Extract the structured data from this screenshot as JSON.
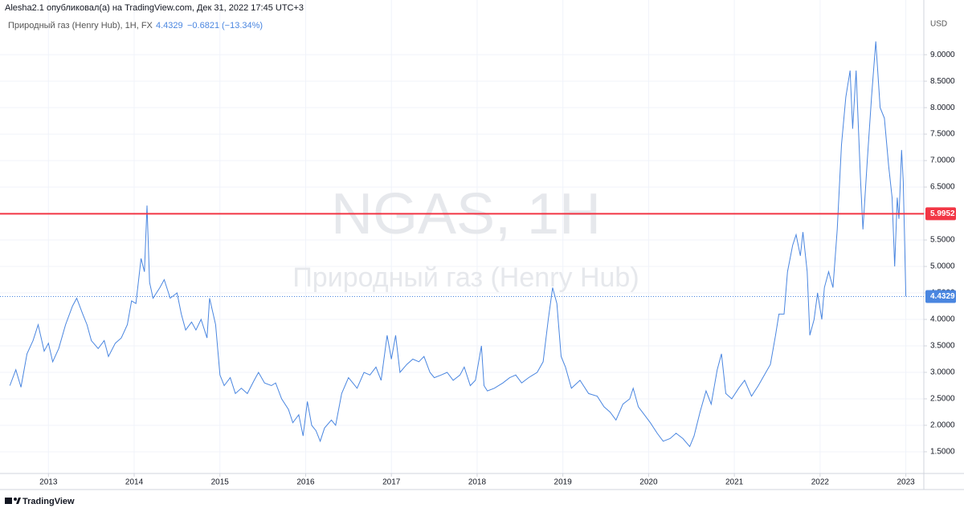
{
  "header": "Alesha2.1 опубликовал(а) на TradingView.com, Дек 31, 2022 17:45 UTC+3",
  "footer": "TradingView",
  "chart_data": {
    "type": "line",
    "symbol": "Природный газ (Henry Hub), 1Н, FX",
    "last_price": 4.4329,
    "change": "−0.6821",
    "change_pct": "(−13.34%)",
    "watermark": [
      "NGAS, 1Н",
      "Природный газ (Henry Hub)"
    ],
    "currency": "USD",
    "color": "#4a86e0",
    "hline": {
      "value": 5.9952,
      "color": "#f23645"
    },
    "grid": true,
    "xlim": [
      2012.51,
      2023.21
    ],
    "xticks": [
      2013,
      2014,
      2015,
      2016,
      2017,
      2018,
      2019,
      2020,
      2021,
      2022,
      2023
    ],
    "ylim": [
      1.09,
      9.76
    ],
    "yticks": [
      {
        "value": 1.5,
        "label": "1.5000"
      },
      {
        "value": 2,
        "label": "2.0000"
      },
      {
        "value": 2.5,
        "label": "2.5000"
      },
      {
        "value": 3,
        "label": "3.0000"
      },
      {
        "value": 3.5,
        "label": "3.5000"
      },
      {
        "value": 4,
        "label": "4.0000"
      },
      {
        "value": 4.5,
        "label": "4.5000"
      },
      {
        "value": 5,
        "label": "5.0000"
      },
      {
        "value": 5.5,
        "label": "5.5000"
      },
      {
        "value": 6,
        "label": "6.0000"
      },
      {
        "value": 6.5,
        "label": "6.5000"
      },
      {
        "value": 7,
        "label": "7.0000"
      },
      {
        "value": 7.5,
        "label": "7.5000"
      },
      {
        "value": 8,
        "label": "8.0000"
      },
      {
        "value": 8.5,
        "label": "8.5000"
      },
      {
        "value": 9,
        "label": "9.0000"
      }
    ],
    "x": [
      2012.55,
      2012.62,
      2012.68,
      2012.75,
      2012.82,
      2012.88,
      2012.95,
      2013.0,
      2013.05,
      2013.12,
      2013.2,
      2013.28,
      2013.33,
      2013.4,
      2013.45,
      2013.5,
      2013.58,
      2013.65,
      2013.7,
      2013.78,
      2013.85,
      2013.92,
      2013.97,
      2014.02,
      2014.08,
      2014.12,
      2014.15,
      2014.18,
      2014.22,
      2014.3,
      2014.35,
      2014.42,
      2014.5,
      2014.55,
      2014.6,
      2014.67,
      2014.72,
      2014.78,
      2014.85,
      2014.88,
      2014.95,
      2015.0,
      2015.05,
      2015.12,
      2015.18,
      2015.25,
      2015.32,
      2015.4,
      2015.45,
      2015.52,
      2015.6,
      2015.65,
      2015.72,
      2015.8,
      2015.85,
      2015.92,
      2015.97,
      2016.02,
      2016.07,
      2016.12,
      2016.17,
      2016.22,
      2016.3,
      2016.35,
      2016.42,
      2016.5,
      2016.55,
      2016.6,
      2016.68,
      2016.75,
      2016.82,
      2016.88,
      2016.95,
      2017.0,
      2017.05,
      2017.1,
      2017.18,
      2017.25,
      2017.32,
      2017.38,
      2017.45,
      2017.5,
      2017.58,
      2017.65,
      2017.72,
      2017.8,
      2017.85,
      2017.92,
      2017.98,
      2018.05,
      2018.08,
      2018.12,
      2018.2,
      2018.3,
      2018.38,
      2018.45,
      2018.52,
      2018.6,
      2018.65,
      2018.7,
      2018.77,
      2018.83,
      2018.88,
      2018.93,
      2018.98,
      2019.03,
      2019.1,
      2019.2,
      2019.3,
      2019.4,
      2019.48,
      2019.55,
      2019.62,
      2019.7,
      2019.78,
      2019.82,
      2019.88,
      2019.95,
      2020.02,
      2020.1,
      2020.17,
      2020.25,
      2020.32,
      2020.4,
      2020.48,
      2020.53,
      2020.6,
      2020.67,
      2020.73,
      2020.8,
      2020.85,
      2020.9,
      2020.97,
      2021.05,
      2021.12,
      2021.2,
      2021.28,
      2021.35,
      2021.42,
      2021.48,
      2021.52,
      2021.58,
      2021.62,
      2021.68,
      2021.72,
      2021.77,
      2021.8,
      2021.85,
      2021.88,
      2021.93,
      2021.97,
      2022.02,
      2022.05,
      2022.1,
      2022.15,
      2022.2,
      2022.25,
      2022.3,
      2022.35,
      2022.38,
      2022.42,
      2022.47,
      2022.5,
      2022.55,
      2022.6,
      2022.65,
      2022.7,
      2022.75,
      2022.8,
      2022.84,
      2022.87,
      2022.9,
      2022.92,
      2022.95,
      2022.97,
      2023.0
    ],
    "values": [
      2.75,
      3.05,
      2.72,
      3.35,
      3.6,
      3.9,
      3.4,
      3.55,
      3.2,
      3.45,
      3.9,
      4.25,
      4.4,
      4.1,
      3.9,
      3.6,
      3.45,
      3.6,
      3.3,
      3.55,
      3.65,
      3.9,
      4.35,
      4.3,
      5.15,
      4.9,
      6.15,
      4.7,
      4.4,
      4.6,
      4.75,
      4.4,
      4.5,
      4.1,
      3.8,
      3.95,
      3.8,
      4.0,
      3.65,
      4.4,
      3.9,
      2.95,
      2.75,
      2.9,
      2.6,
      2.7,
      2.6,
      2.85,
      3.0,
      2.8,
      2.75,
      2.8,
      2.5,
      2.3,
      2.05,
      2.2,
      1.8,
      2.45,
      2.0,
      1.9,
      1.7,
      1.95,
      2.1,
      2.0,
      2.6,
      2.9,
      2.8,
      2.7,
      3.0,
      2.95,
      3.1,
      2.85,
      3.7,
      3.25,
      3.7,
      3.0,
      3.15,
      3.25,
      3.2,
      3.3,
      3.0,
      2.9,
      2.95,
      3.0,
      2.85,
      2.95,
      3.1,
      2.75,
      2.85,
      3.5,
      2.75,
      2.65,
      2.7,
      2.8,
      2.9,
      2.95,
      2.8,
      2.9,
      2.95,
      3.0,
      3.2,
      4.0,
      4.6,
      4.3,
      3.3,
      3.1,
      2.7,
      2.85,
      2.6,
      2.55,
      2.35,
      2.25,
      2.1,
      2.4,
      2.5,
      2.7,
      2.35,
      2.2,
      2.05,
      1.85,
      1.7,
      1.75,
      1.85,
      1.75,
      1.6,
      1.8,
      2.25,
      2.65,
      2.4,
      3.05,
      3.35,
      2.6,
      2.5,
      2.7,
      2.85,
      2.55,
      2.75,
      2.95,
      3.15,
      3.7,
      4.1,
      4.1,
      4.9,
      5.4,
      5.6,
      5.2,
      5.65,
      4.9,
      3.7,
      4.0,
      4.5,
      4.0,
      4.6,
      4.9,
      4.6,
      5.7,
      7.3,
      8.2,
      8.7,
      7.6,
      8.7,
      6.7,
      5.7,
      7.0,
      8.2,
      9.25,
      8.0,
      7.8,
      6.9,
      6.3,
      5.0,
      6.3,
      5.9,
      7.2,
      6.6,
      4.4329
    ]
  }
}
